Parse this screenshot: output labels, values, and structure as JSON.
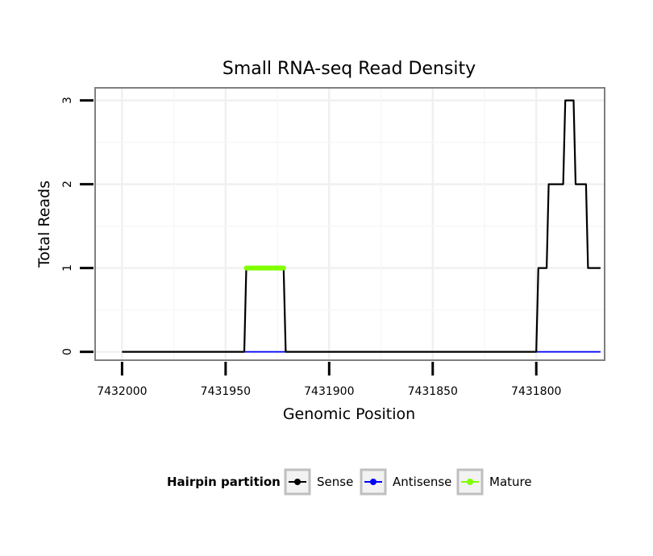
{
  "chart_data": {
    "type": "line",
    "title": "Small RNA-seq Read Density",
    "xlabel": "Genomic Position",
    "ylabel": "Total Reads",
    "x_reversed": true,
    "xlim": [
      7432013,
      7431767
    ],
    "ylim": [
      -0.1,
      3.15
    ],
    "x_ticks": [
      7432000,
      7431950,
      7431900,
      7431850,
      7431800
    ],
    "x_tick_labels": [
      "7432000",
      "7431950",
      "7431900",
      "7431850",
      "7431800"
    ],
    "y_ticks": [
      0,
      1,
      2,
      3
    ],
    "y_tick_labels": [
      "0",
      "1",
      "2",
      "3"
    ],
    "grid": true,
    "legend": {
      "title": "Hairpin partition",
      "position": "bottom",
      "entries": [
        "Sense",
        "Antisense",
        "Mature"
      ]
    },
    "series": [
      {
        "name": "Sense",
        "color": "#000000",
        "x": [
          7432000,
          7431941,
          7431940,
          7431922,
          7431921,
          7431800,
          7431799,
          7431795,
          7431794,
          7431787,
          7431786,
          7431782,
          7431781,
          7431776,
          7431775,
          7431769
        ],
        "y": [
          0,
          0,
          1,
          1,
          0,
          0,
          1,
          1,
          2,
          2,
          3,
          3,
          2,
          2,
          1,
          1
        ]
      },
      {
        "name": "Antisense",
        "color": "#0000FF",
        "x": [
          7432000,
          7431769
        ],
        "y": [
          0,
          0
        ]
      },
      {
        "name": "Mature",
        "color": "#7FFF00",
        "x": [
          7431940,
          7431922
        ],
        "y": [
          1,
          1
        ]
      }
    ]
  }
}
